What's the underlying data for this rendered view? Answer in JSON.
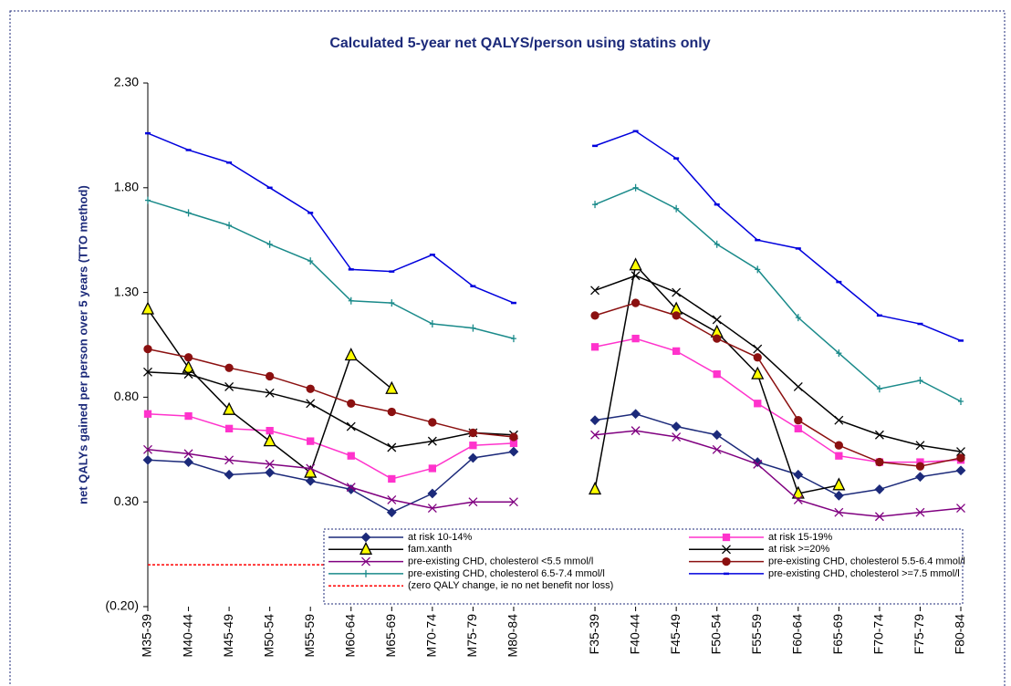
{
  "chart_data": {
    "type": "line",
    "title": "Calculated 5-year net QALYS/person using statins only",
    "y_label": "net QALYs gained per person over 5 years (TTO method)",
    "categories": [
      "M35-39",
      "M40-44",
      "M45-49",
      "M50-54",
      "M55-59",
      "M60-64",
      "M65-69",
      "M70-74",
      "M75-79",
      "M80-84",
      null,
      "F35-39",
      "F40-44",
      "F45-49",
      "F50-54",
      "F55-59",
      "F60-64",
      "F65-69",
      "F70-74",
      "F75-79",
      "F80-84"
    ],
    "ylim": [
      -0.2,
      2.3
    ],
    "yticks": [
      {
        "value": -0.2,
        "label": "(0.20)"
      },
      {
        "value": 0.3,
        "label": "0.30"
      },
      {
        "value": 0.8,
        "label": "0.80"
      },
      {
        "value": 1.3,
        "label": "1.30"
      },
      {
        "value": 1.8,
        "label": "1.80"
      },
      {
        "value": 2.3,
        "label": "2.30"
      }
    ],
    "series": [
      {
        "name": "at risk 10-14%",
        "color": "#1c2a7a",
        "marker": "diamond",
        "values": [
          0.5,
          0.49,
          0.43,
          0.44,
          0.4,
          0.36,
          0.25,
          0.34,
          0.51,
          0.54,
          null,
          0.69,
          0.72,
          0.66,
          0.62,
          0.49,
          0.43,
          0.33,
          0.36,
          0.42,
          0.45
        ]
      },
      {
        "name": "at risk 15-19%",
        "color": "#ff33cc",
        "marker": "square",
        "values": [
          0.72,
          0.71,
          0.65,
          0.64,
          0.59,
          0.52,
          0.41,
          0.46,
          0.57,
          0.58,
          null,
          1.04,
          1.08,
          1.02,
          0.91,
          0.77,
          0.65,
          0.52,
          0.49,
          0.49,
          0.5
        ]
      },
      {
        "name": "fam.xanth",
        "color": "#000000",
        "marker": "triangle",
        "values": [
          1.22,
          0.94,
          0.74,
          0.59,
          0.44,
          1.0,
          0.84,
          null,
          null,
          null,
          null,
          0.36,
          1.43,
          1.22,
          1.11,
          0.91,
          0.34,
          0.38,
          null,
          null,
          null
        ]
      },
      {
        "name": "at risk >=20%",
        "color": "#000000",
        "marker": "x",
        "values": [
          0.92,
          0.91,
          0.85,
          0.82,
          0.77,
          0.66,
          0.56,
          0.59,
          0.63,
          0.62,
          null,
          1.31,
          1.38,
          1.3,
          1.17,
          1.03,
          0.85,
          0.69,
          0.62,
          0.57,
          0.54
        ]
      },
      {
        "name": "pre-existing CHD, cholesterol <5.5 mmol/l",
        "color": "#800080",
        "marker": "x",
        "values": [
          0.55,
          0.53,
          0.5,
          0.48,
          0.46,
          0.37,
          0.31,
          0.27,
          0.3,
          0.3,
          null,
          0.62,
          0.64,
          0.61,
          0.55,
          0.48,
          0.31,
          0.25,
          0.23,
          0.25,
          0.27
        ]
      },
      {
        "name": "pre-existing CHD, cholesterol 5.5-6.4 mmol/l",
        "color": "#8b1010",
        "marker": "circle",
        "values": [
          1.03,
          0.99,
          0.94,
          0.9,
          0.84,
          0.77,
          0.73,
          0.68,
          0.63,
          0.61,
          null,
          1.19,
          1.25,
          1.19,
          1.08,
          0.99,
          0.69,
          0.57,
          0.49,
          0.47,
          0.51
        ]
      },
      {
        "name": "pre-existing CHD, cholesterol 6.5-7.4 mmol/l",
        "color": "#1a8a8a",
        "marker": "plus",
        "values": [
          1.74,
          1.68,
          1.62,
          1.53,
          1.45,
          1.26,
          1.25,
          1.15,
          1.13,
          1.08,
          null,
          1.72,
          1.8,
          1.7,
          1.53,
          1.41,
          1.18,
          1.01,
          0.84,
          0.88,
          0.78
        ]
      },
      {
        "name": "pre-existing CHD, cholesterol >=7.5 mmol/l",
        "color": "#0000dd",
        "marker": "dash",
        "values": [
          2.06,
          1.98,
          1.92,
          1.8,
          1.68,
          1.41,
          1.4,
          1.48,
          1.33,
          1.25,
          null,
          2.0,
          2.07,
          1.94,
          1.72,
          1.55,
          1.51,
          1.35,
          1.19,
          1.15,
          1.07
        ]
      },
      {
        "name": "(zero QALY change, ie no net benefit nor loss)",
        "color": "#ff0000",
        "marker": "none",
        "dashed": true,
        "values": [
          0,
          0,
          0,
          0,
          0,
          0,
          0,
          0,
          0,
          0,
          null,
          0,
          0,
          0,
          0,
          0,
          0,
          0,
          0,
          0,
          0
        ]
      }
    ]
  }
}
